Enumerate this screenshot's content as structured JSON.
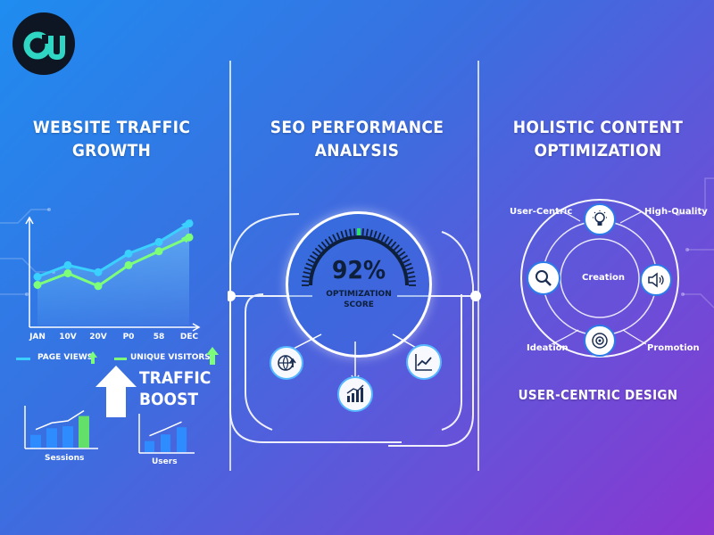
{
  "columns": {
    "traffic": {
      "title_line1": "WEBSITE TRAFFIC",
      "title_line2": "GROWTH"
    },
    "seo": {
      "title_line1": "SEO PERFORMANCE",
      "title_line2": "ANALYSIS"
    },
    "content": {
      "title_line1": "HOLISTIC CONTENT",
      "title_line2": "OPTIMIZATION"
    }
  },
  "chart_data": [
    {
      "type": "line",
      "categories": [
        "JAN",
        "10V",
        "20V",
        "P0",
        "58",
        "DEC"
      ],
      "series": [
        {
          "name": "PAGE VIEWS",
          "values": [
            42,
            52,
            46,
            62,
            72,
            88
          ]
        },
        {
          "name": "UNIQUE VISITORS",
          "values": [
            35,
            45,
            34,
            52,
            64,
            76
          ]
        }
      ],
      "ylim": [
        0,
        100
      ],
      "grid": false
    },
    {
      "type": "bar",
      "xlabel": "Sessions",
      "values": [
        25,
        38,
        42,
        62
      ]
    },
    {
      "type": "bar",
      "xlabel": "Users",
      "values": [
        20,
        32,
        45
      ]
    }
  ],
  "legend": {
    "page_views": "PAGE VIEWS",
    "unique_visitors": "UNIQUE VISITORS"
  },
  "boost": {
    "line1": "TRAFFIC",
    "line2": "BOOST"
  },
  "gauge": {
    "value_text": "92%",
    "value": 92,
    "label_line1": "OPTIMIZATION",
    "label_line2": "SCORE"
  },
  "wheel": {
    "center": "Creation",
    "user_centric": "User-Centric",
    "high_quality": "High-Quality",
    "ideation": "Ideation",
    "promotion": "Promotion"
  },
  "design_label": "USER-CENTRIC DESIGN",
  "icons": [
    "logo",
    "globe-upload-icon",
    "bar-chart-icon",
    "line-chart-icon",
    "lightbulb-icon",
    "search-icon",
    "speaker-icon",
    "target-icon",
    "arrow-up-icon"
  ],
  "colors": {
    "blue_line": "#3ad0ff",
    "green_line": "#7dff7a",
    "accent": "#2b7be8"
  }
}
